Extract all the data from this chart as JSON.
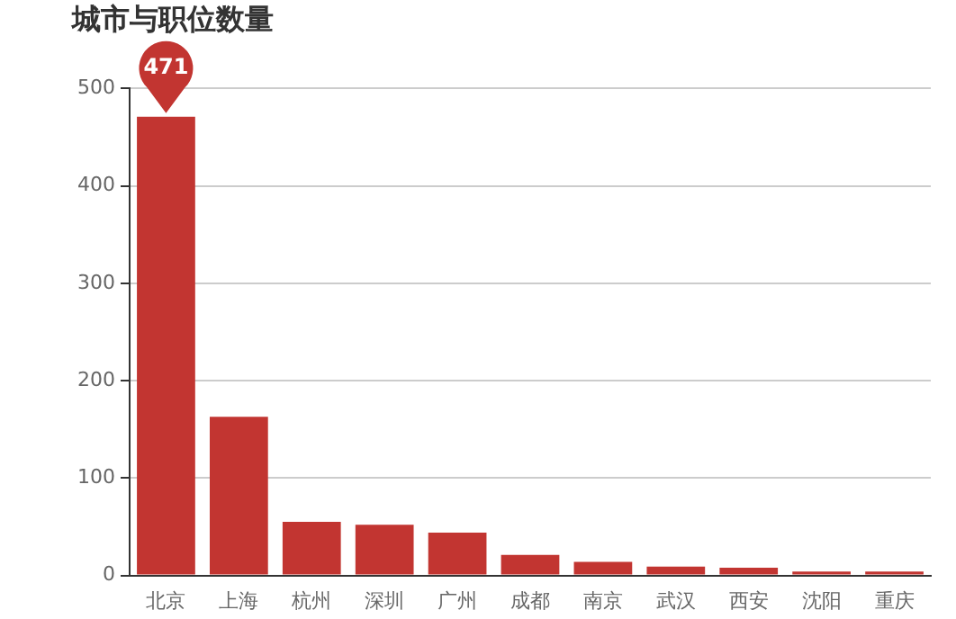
{
  "chart_data": {
    "type": "bar",
    "title": "城市与职位数量",
    "categories": [
      "北京",
      "上海",
      "杭州",
      "深圳",
      "广州",
      "成都",
      "南京",
      "武汉",
      "西安",
      "沈阳",
      "重庆"
    ],
    "values": [
      471,
      163,
      55,
      52,
      44,
      21,
      14,
      9,
      8,
      4,
      4
    ],
    "color": "#c23531",
    "ylim": [
      0,
      500
    ],
    "yticks": [
      0,
      100,
      200,
      300,
      400,
      500
    ],
    "grid": "y",
    "annotations": [
      {
        "text": "471",
        "x": "北京",
        "y": 471
      }
    ]
  }
}
